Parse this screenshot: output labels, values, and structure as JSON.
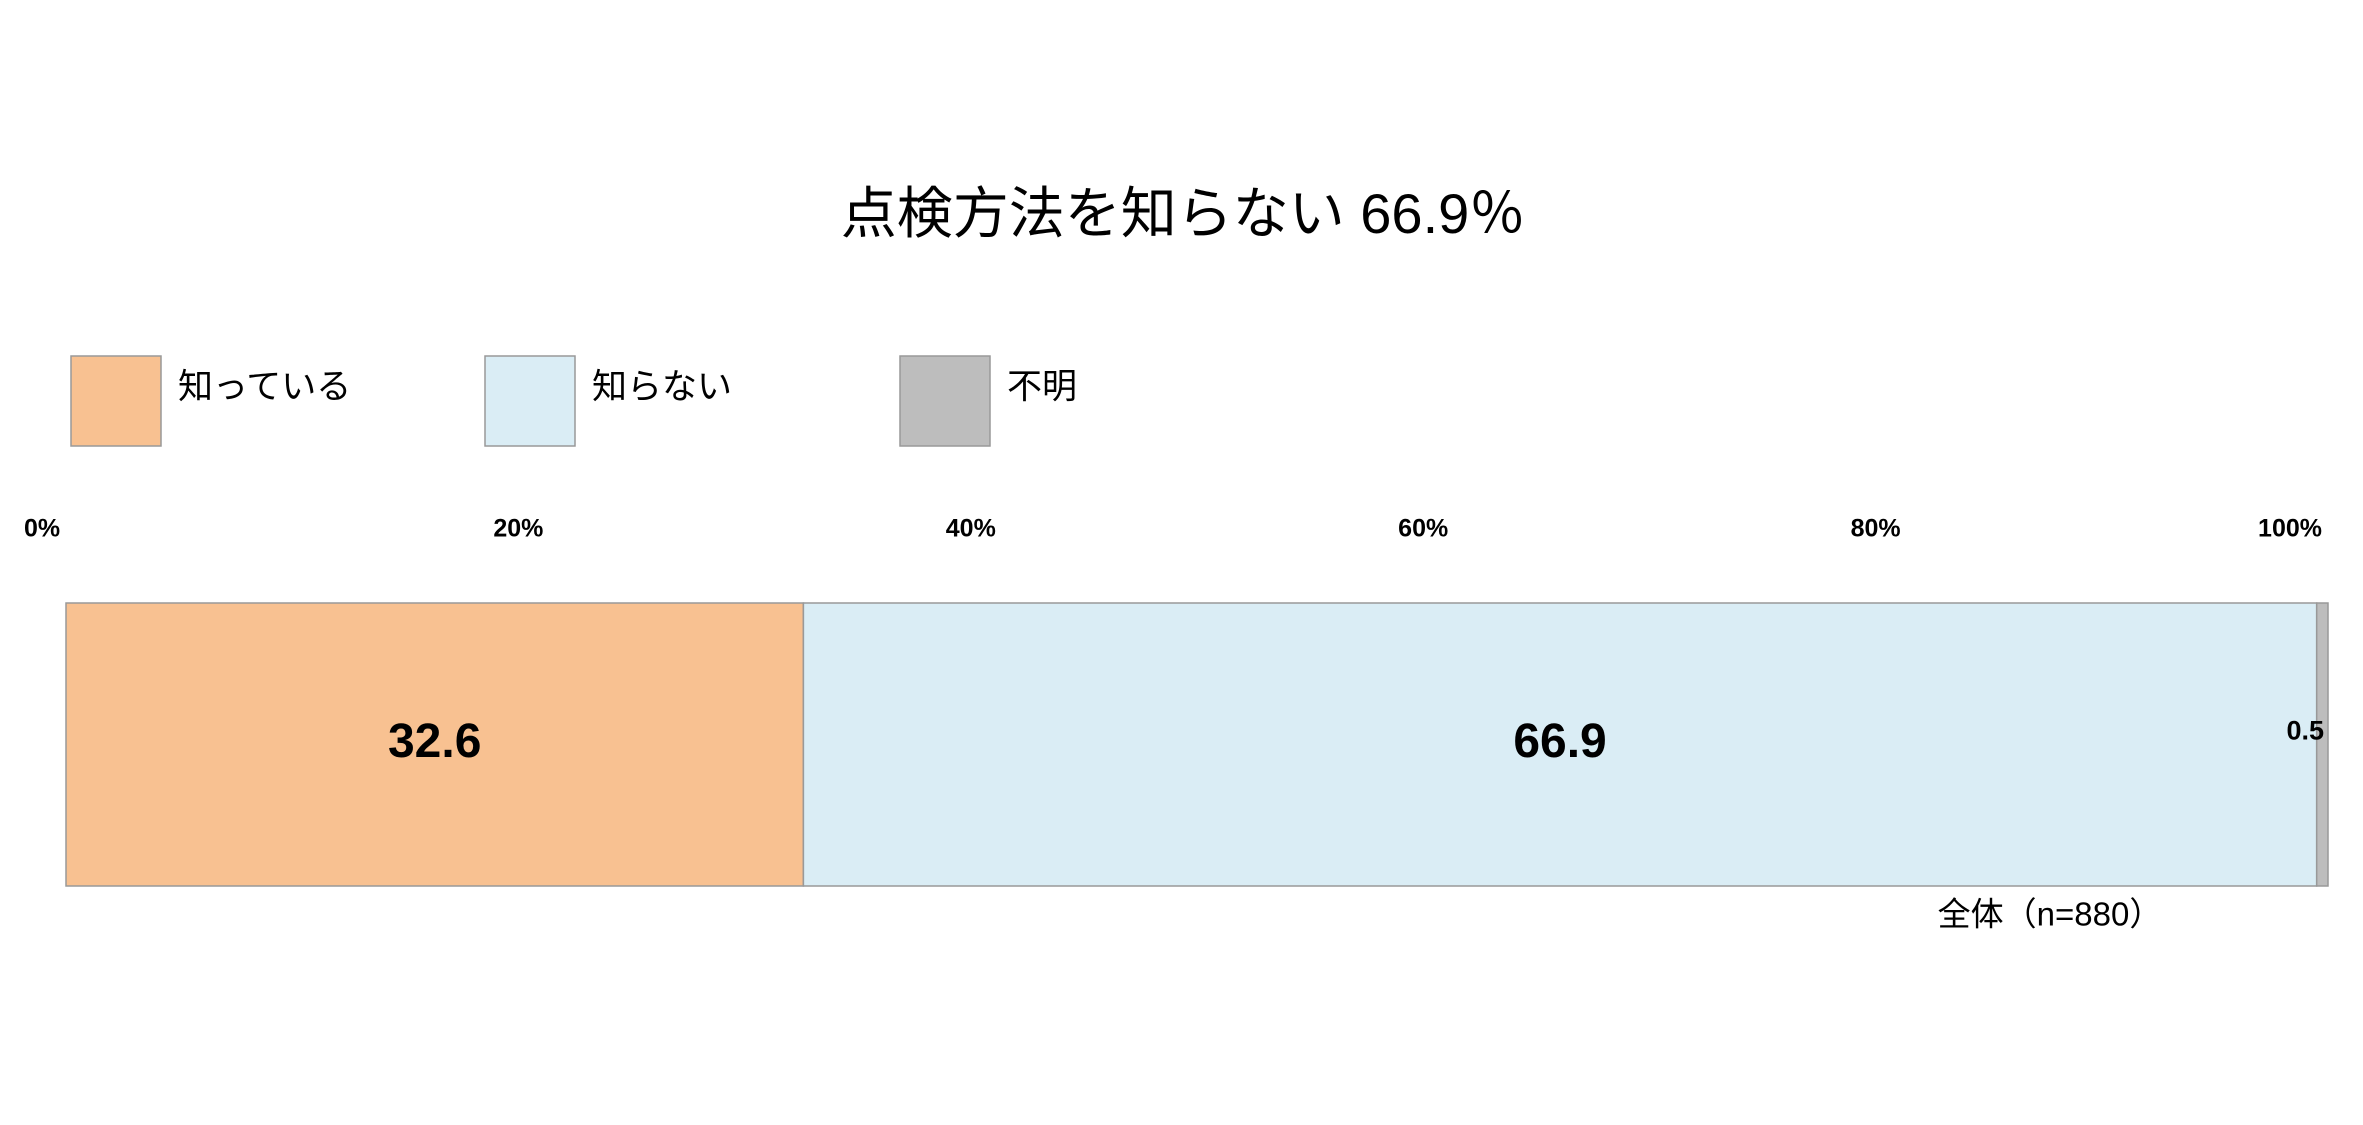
{
  "chart_data": {
    "type": "stacked-bar-horizontal",
    "title": "点検方法を知らない 66.9％",
    "categories": [
      "全体（n=880）"
    ],
    "series": [
      {
        "name": "知っている",
        "color": "#f8c191",
        "values": [
          32.6
        ]
      },
      {
        "name": "知らない",
        "color": "#daedf5",
        "values": [
          66.9
        ]
      },
      {
        "name": "不明",
        "color": "#bdbdbd",
        "values": [
          0.5
        ]
      }
    ],
    "xlim": [
      0,
      100
    ],
    "xticks": [
      {
        "value": 0,
        "label": "0%"
      },
      {
        "value": 20,
        "label": "20%"
      },
      {
        "value": 40,
        "label": "40%"
      },
      {
        "value": 60,
        "label": "60%"
      },
      {
        "value": 80,
        "label": "80%"
      },
      {
        "value": 100,
        "label": "100%"
      }
    ],
    "legend": "top-left",
    "grid": false
  }
}
